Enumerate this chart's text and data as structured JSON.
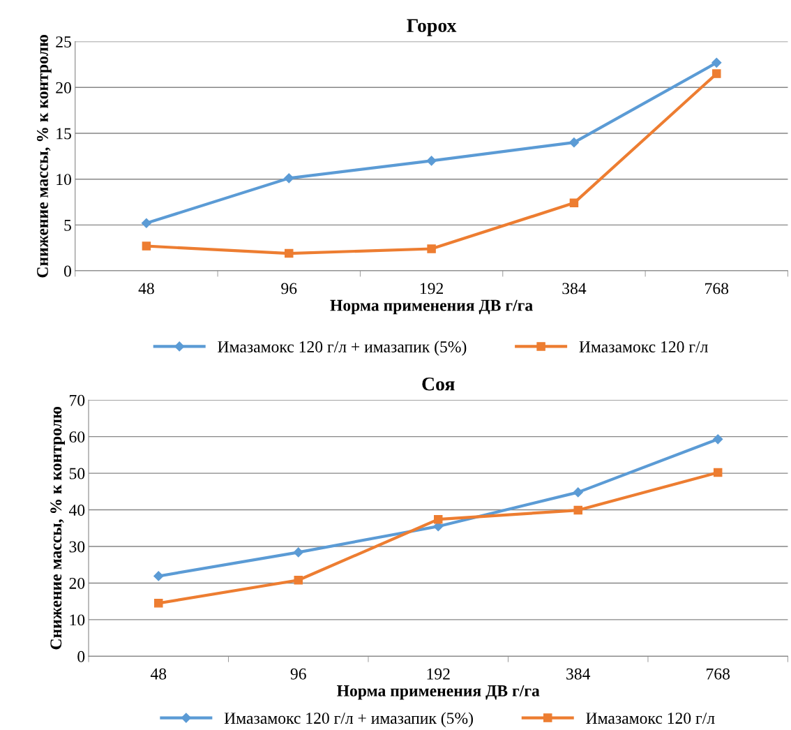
{
  "chart_data": [
    {
      "type": "line",
      "title": "Горох",
      "xlabel": "Норма применения ДВ г/га",
      "ylabel": "Снижение массы, % к контролю",
      "categories": [
        "48",
        "96",
        "192",
        "384",
        "768"
      ],
      "ylim": [
        0,
        25
      ],
      "yticks": [
        0,
        5,
        10,
        15,
        20,
        25
      ],
      "grid": "y",
      "legend": "bottom",
      "line_style": "solid",
      "series": [
        {
          "name": "Имазамокс 120 г/л + имазапик (5%)",
          "color": "#5b9bd5",
          "marker": "diamond",
          "values": [
            5.2,
            10.1,
            12.0,
            14.0,
            22.7
          ]
        },
        {
          "name": "Имазамокс 120 г/л",
          "color": "#ed7d31",
          "marker": "square",
          "values": [
            2.7,
            1.9,
            2.4,
            7.4,
            21.5
          ]
        }
      ]
    },
    {
      "type": "line",
      "title": "Соя",
      "xlabel": "Норма применения ДВ г/га",
      "ylabel": "Снижение массы, % к контролю",
      "categories": [
        "48",
        "96",
        "192",
        "384",
        "768"
      ],
      "ylim": [
        0,
        70
      ],
      "yticks": [
        0,
        10,
        20,
        30,
        40,
        50,
        60,
        70
      ],
      "grid": "y",
      "legend": "bottom",
      "line_style": "solid",
      "series": [
        {
          "name": "Имазамокс 120 г/л + имазапик (5%)",
          "color": "#5b9bd5",
          "marker": "diamond",
          "values": [
            21.9,
            28.4,
            35.5,
            44.8,
            59.3
          ]
        },
        {
          "name": "Имазамокс 120 г/л",
          "color": "#ed7d31",
          "marker": "square",
          "values": [
            14.5,
            20.8,
            37.4,
            39.9,
            50.2
          ]
        }
      ]
    }
  ]
}
